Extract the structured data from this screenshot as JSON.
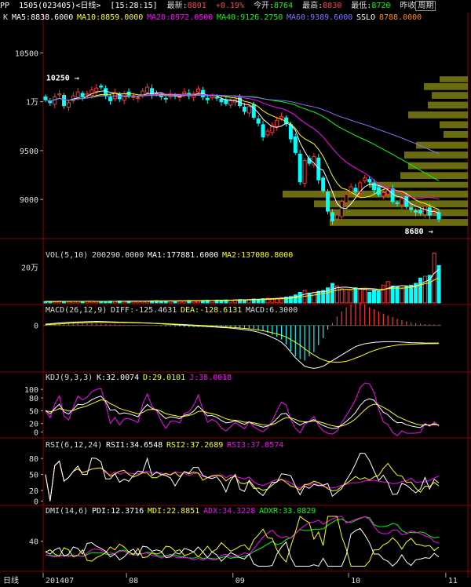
{
  "header": {
    "code": "PP",
    "contract": "1505",
    "security": "(023405)",
    "period": "<日线>",
    "time": "[15:28:15]",
    "latest_label": "最新:",
    "latest": "8801",
    "change": "+0.19%",
    "open_label": "今开:",
    "open": "8764",
    "high_label": "最高:",
    "high": "8830",
    "low_label": "最低:",
    "low": "8720",
    "tab_prev": "昨收",
    "tab_week": "周期"
  },
  "colors": {
    "up": "#ff3333",
    "down": "#00ffff",
    "ma5": "#ffffff",
    "ma10": "#ffff00",
    "ma20": "#ff00ff",
    "ma40": "#00ff00",
    "ma60": "#7777ff",
    "sslo": "#ff8800",
    "grid": "#8b0000",
    "volprofile": "#6b6b10"
  },
  "chart_data": [
    {
      "type": "candlestick",
      "panel": "price",
      "legend": {
        "k": "K",
        "ma5": "MA5:8838.6000",
        "ma10": "MA10:8859.0000",
        "ma20": "MA20:8972.0500",
        "ma40": "MA40:9126.2750",
        "ma60": "MA60:9389.6000",
        "sslo_label": "SSLO",
        "sslo": "8788.0000"
      },
      "y_ticks": [
        "10500",
        "1万",
        "9500",
        "9000"
      ],
      "y_tick_values": [
        10500,
        10000,
        9500,
        9000
      ],
      "ylim": [
        8600,
        10800
      ],
      "annotations": {
        "high": "10250",
        "low": "8680"
      },
      "close": [
        10020,
        9990,
        10050,
        10080,
        9960,
        9990,
        10060,
        10100,
        10050,
        10080,
        10120,
        10140,
        10150,
        10060,
        10010,
        10090,
        10030,
        10080,
        10060,
        10050,
        10040,
        10110,
        10150,
        10070,
        10080,
        10050,
        10030,
        10080,
        10060,
        10050,
        10100,
        10060,
        10080,
        10130,
        10050,
        10020,
        10060,
        10040,
        10000,
        9980,
        10010,
        10020,
        9960,
        9900,
        9950,
        9840,
        9780,
        9640,
        9700,
        9760,
        9810,
        9850,
        9780,
        9620,
        9480,
        9180,
        9400,
        9370,
        9440,
        9200,
        9090,
        8880,
        8780,
        8840,
        8980,
        9050,
        9130,
        9080,
        9170,
        9220,
        9180,
        9100,
        9050,
        9070,
        9090,
        8980,
        8960,
        9010,
        8930,
        8900,
        8870,
        8860,
        8930,
        8840,
        8880,
        8800
      ]
    },
    {
      "type": "bar",
      "panel": "volume",
      "legend": {
        "title": "VOL(5,10)",
        "vol": "200290.0000",
        "ma1": "MA1:177881.6000",
        "ma2": "MA2:137080.8000"
      },
      "y_ticks": [
        "20万"
      ],
      "values": [
        8000,
        9000,
        7000,
        10000,
        9000,
        8000,
        9000,
        8500,
        9000,
        10000,
        9000,
        8000,
        9000,
        8000,
        10000,
        9000,
        11000,
        9000,
        9500,
        10000,
        9000,
        10000,
        11000,
        12000,
        13000,
        11000,
        10000,
        12000,
        11000,
        13000,
        12000,
        14000,
        13000,
        12000,
        14000,
        15000,
        14000,
        16000,
        15000,
        17000,
        16000,
        18000,
        19000,
        17000,
        20000,
        22000,
        21000,
        24000,
        26000,
        25000,
        27000,
        30000,
        33000,
        36000,
        45000,
        60000,
        70000,
        55000,
        60000,
        65000,
        70000,
        85000,
        110000,
        95000,
        80000,
        75000,
        70000,
        85000,
        80000,
        75000,
        60000,
        70000,
        65000,
        100000,
        120000,
        95000,
        90000,
        80000,
        95000,
        100000,
        110000,
        140000,
        150000,
        155000,
        280000,
        210000
      ],
      "ylim": [
        0,
        300000
      ]
    },
    {
      "type": "line",
      "panel": "macd",
      "legend": {
        "title": "MACD(26,12,9)",
        "diff": "DIFF:-125.4631",
        "dea": "DEA:-128.6131",
        "macd": "MACD:6.3000"
      },
      "y_ticks": [
        "0"
      ],
      "diff": [
        10,
        12,
        15,
        18,
        20,
        22,
        24,
        25,
        26,
        27,
        28,
        29,
        28,
        27,
        26,
        25,
        24,
        23,
        22,
        21,
        20,
        19,
        18,
        16,
        14,
        12,
        10,
        8,
        6,
        4,
        2,
        0,
        -2,
        -4,
        -6,
        -8,
        -10,
        -12,
        -14,
        -16,
        -18,
        -22,
        -26,
        -30,
        -34,
        -40,
        -48,
        -58,
        -70,
        -85,
        -100,
        -120,
        -150,
        -190,
        -230,
        -260,
        -290,
        -300,
        -305,
        -300,
        -290,
        -270,
        -250,
        -230,
        -210,
        -190,
        -170,
        -150,
        -140,
        -130,
        -125,
        -120,
        -118,
        -116,
        -115,
        -115,
        -116,
        -118,
        -120,
        -122,
        -123,
        -124,
        -125,
        -125,
        -125,
        -125
      ],
      "dea": [
        5,
        7,
        9,
        11,
        13,
        15,
        17,
        18,
        19,
        20,
        21,
        22,
        22,
        22,
        22,
        21,
        21,
        20,
        20,
        19,
        19,
        18,
        17,
        16,
        15,
        14,
        13,
        11,
        10,
        8,
        7,
        5,
        3,
        1,
        -1,
        -3,
        -5,
        -7,
        -9,
        -11,
        -13,
        -15,
        -18,
        -21,
        -24,
        -28,
        -32,
        -38,
        -44,
        -52,
        -60,
        -70,
        -82,
        -100,
        -120,
        -140,
        -165,
        -190,
        -210,
        -230,
        -245,
        -255,
        -260,
        -262,
        -260,
        -255,
        -245,
        -232,
        -220,
        -205,
        -190,
        -178,
        -168,
        -158,
        -150,
        -145,
        -140,
        -137,
        -135,
        -133,
        -132,
        -131,
        -130,
        -129,
        -129,
        -128
      ],
      "ylim": [
        -320,
        60
      ]
    },
    {
      "type": "line",
      "panel": "kdj",
      "legend": {
        "title": "KDJ(9,3,3)",
        "k": "K:32.0074",
        "d": "D:29.0101",
        "j": "J:38.0018"
      },
      "y_ticks": [
        "100",
        "80",
        "50",
        "20",
        "0"
      ],
      "y_tick_values": [
        100,
        80,
        50,
        20,
        0
      ],
      "ylim": [
        -10,
        115
      ]
    },
    {
      "type": "line",
      "panel": "rsi",
      "legend": {
        "title": "RSI(6,12,24)",
        "rsi1": "RSI1:34.6548",
        "rsi2": "RSI2:37.2689",
        "rsi3": "RSI3:37.8574"
      },
      "y_ticks": [
        "80",
        "50",
        "20",
        "0"
      ],
      "y_tick_values": [
        80,
        50,
        20,
        0
      ],
      "ylim": [
        -5,
        95
      ]
    },
    {
      "type": "line",
      "panel": "dmi",
      "legend": {
        "title": "DMI(14,6)",
        "pdi": "PDI:12.3716",
        "mdi": "MDI:22.8851",
        "adx": "ADX:34.3228",
        "adxr": "ADXR:33.0829"
      },
      "y_ticks": [
        "40"
      ],
      "y_tick_values": [
        40
      ],
      "ylim": [
        0,
        75
      ]
    }
  ],
  "xaxis": {
    "label": "日线",
    "ticks": [
      "201407",
      "08",
      "09",
      "10",
      "11"
    ]
  }
}
